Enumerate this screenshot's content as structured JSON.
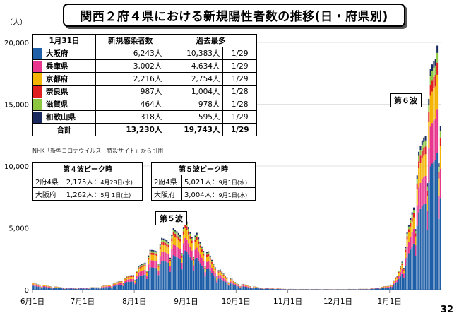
{
  "title": "関西２府４県における新規陽性者数の推移(日・府県別)",
  "unit_label": "（人）",
  "page_number": "32",
  "colors": {
    "osaka": "#1f5fa8",
    "hyogo": "#e8368f",
    "kyoto": "#f5b400",
    "nara": "#e02020",
    "shiga": "#8dc63f",
    "wakayama": "#1a2a5e"
  },
  "summary_table": {
    "date_label": "1月31日",
    "col_new": "新規感染者数",
    "col_max": "過去最多",
    "rows": [
      {
        "pref": "大阪府",
        "color_key": "osaka",
        "new": "6,243人",
        "max": "10,383人",
        "max_date": "1/29"
      },
      {
        "pref": "兵庫県",
        "color_key": "hyogo",
        "new": "3,002人",
        "max": "4,634人",
        "max_date": "1/29"
      },
      {
        "pref": "京都府",
        "color_key": "kyoto",
        "new": "2,216人",
        "max": "2,754人",
        "max_date": "1/29"
      },
      {
        "pref": "奈良県",
        "color_key": "nara",
        "new": "987人",
        "max": "1,004人",
        "max_date": "1/28"
      },
      {
        "pref": "滋賀県",
        "color_key": "shiga",
        "new": "464人",
        "max": "978人",
        "max_date": "1/28"
      },
      {
        "pref": "和歌山県",
        "color_key": "wakayama",
        "new": "318人",
        "max": "595人",
        "max_date": "1/29"
      }
    ],
    "total": {
      "label": "合計",
      "new": "13,230人",
      "max": "19,743人",
      "max_date": "1/29"
    }
  },
  "source_note": "NHK「新型コロナウイルス　特設サイト」から引用",
  "peak4": {
    "title": "第４波ピーク時",
    "rows": [
      {
        "label": "2府4県",
        "value": "2,175人",
        "date": "4月28日(水)"
      },
      {
        "label": "大阪府",
        "value": "1,262人",
        "date": "5月 1日(土)"
      }
    ]
  },
  "peak5": {
    "title": "第５波ピーク時",
    "rows": [
      {
        "label": "2府4県",
        "value": "5,021人",
        "date": "9月1日(水)"
      },
      {
        "label": "大阪府",
        "value": "3,004人",
        "date": "9月1日(水)"
      }
    ]
  },
  "wave5_label": "第５波",
  "wave6_label": "第６波",
  "chart_data": {
    "type": "bar",
    "stacked": true,
    "x_tick_labels": [
      "6月1日",
      "7月1日",
      "8月1日",
      "9月1日",
      "10月1日",
      "11月1日",
      "12月1日",
      "1月1日"
    ],
    "y_tick_labels": [
      "0",
      "5,000",
      "10,000",
      "15,000",
      "20,000"
    ],
    "ylim": [
      0,
      20000
    ],
    "x_start": "2021-06-01",
    "x_end": "2022-01-31",
    "series_order": [
      "osaka",
      "hyogo",
      "kyoto",
      "nara",
      "shiga",
      "wakayama"
    ],
    "series_share": [
      0.56,
      0.18,
      0.14,
      0.05,
      0.04,
      0.03
    ],
    "daily_total_anchors": [
      [
        "2021-06-01",
        500
      ],
      [
        "2021-06-10",
        300
      ],
      [
        "2021-06-20",
        150
      ],
      [
        "2021-07-01",
        150
      ],
      [
        "2021-07-10",
        200
      ],
      [
        "2021-07-20",
        500
      ],
      [
        "2021-08-01",
        1300
      ],
      [
        "2021-08-10",
        2800
      ],
      [
        "2021-08-20",
        4000
      ],
      [
        "2021-09-01",
        5000
      ],
      [
        "2021-09-10",
        3500
      ],
      [
        "2021-09-20",
        1500
      ],
      [
        "2021-10-01",
        500
      ],
      [
        "2021-10-15",
        150
      ],
      [
        "2021-11-01",
        60
      ],
      [
        "2021-12-01",
        40
      ],
      [
        "2021-12-20",
        80
      ],
      [
        "2021-12-31",
        300
      ],
      [
        "2022-01-05",
        1000
      ],
      [
        "2022-01-10",
        3300
      ],
      [
        "2022-01-15",
        7000
      ],
      [
        "2022-01-20",
        11500
      ],
      [
        "2022-01-25",
        15500
      ],
      [
        "2022-01-29",
        19743
      ],
      [
        "2022-01-31",
        13230
      ]
    ],
    "weekday_factors": [
      0.62,
      1.05,
      1.15,
      1.1,
      1.05,
      1.0,
      0.95
    ]
  }
}
